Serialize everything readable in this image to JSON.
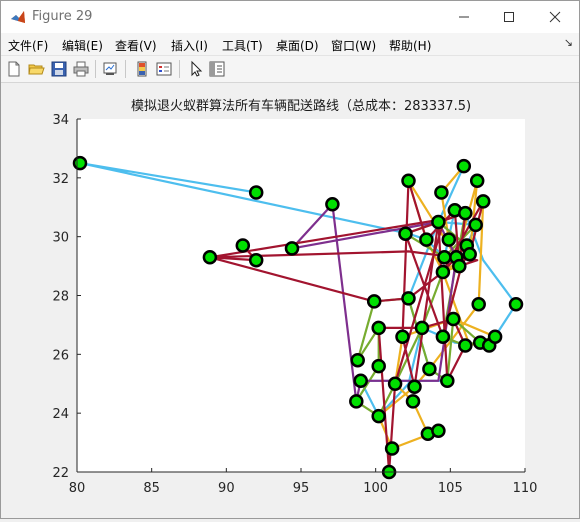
{
  "window": {
    "title": "Figure 29",
    "accent": "#ffffff"
  },
  "menu": {
    "items": [
      "文件(F)",
      "编辑(E)",
      "查看(V)",
      "插入(I)",
      "工具(T)",
      "桌面(D)",
      "窗口(W)",
      "帮助(H)"
    ]
  },
  "toolbar": {
    "icons": [
      "new-figure-icon",
      "open-file-icon",
      "save-icon",
      "print-icon",
      "link-plot-icon",
      "insert-colorbar-icon",
      "insert-legend-icon",
      "edit-plot-icon",
      "property-inspector-icon"
    ]
  },
  "chart_data": {
    "type": "line",
    "title": "模拟退火蚁群算法所有车辆配送路线（总成本：283337.5)",
    "xlim": [
      80,
      110
    ],
    "ylim": [
      22,
      34
    ],
    "x_ticks": [
      "80",
      "85",
      "90",
      "95",
      "100",
      "105",
      "110"
    ],
    "y_ticks": [
      "22",
      "24",
      "26",
      "28",
      "30",
      "32",
      "34"
    ],
    "node_color": "#00e000",
    "node_edge_color": "#000000",
    "nodes": [
      [
        80.2,
        32.5
      ],
      [
        92.0,
        31.5
      ],
      [
        91.1,
        29.7
      ],
      [
        92.0,
        29.2
      ],
      [
        88.9,
        29.3
      ],
      [
        94.4,
        29.6
      ],
      [
        97.1,
        31.1
      ],
      [
        102.2,
        31.9
      ],
      [
        104.4,
        31.5
      ],
      [
        105.9,
        32.4
      ],
      [
        106.8,
        31.9
      ],
      [
        107.2,
        31.2
      ],
      [
        105.3,
        30.9
      ],
      [
        106.0,
        30.8
      ],
      [
        106.7,
        30.4
      ],
      [
        104.2,
        30.5
      ],
      [
        102.0,
        30.1
      ],
      [
        103.4,
        29.9
      ],
      [
        104.9,
        29.9
      ],
      [
        106.1,
        29.7
      ],
      [
        106.3,
        29.4
      ],
      [
        105.4,
        29.3
      ],
      [
        104.6,
        29.3
      ],
      [
        105.6,
        29.0
      ],
      [
        104.5,
        28.8
      ],
      [
        102.2,
        27.9
      ],
      [
        99.9,
        27.8
      ],
      [
        106.9,
        27.7
      ],
      [
        109.4,
        27.7
      ],
      [
        103.1,
        26.9
      ],
      [
        105.2,
        27.2
      ],
      [
        100.2,
        26.9
      ],
      [
        101.8,
        26.6
      ],
      [
        104.5,
        26.6
      ],
      [
        107.0,
        26.4
      ],
      [
        107.6,
        26.3
      ],
      [
        106.0,
        26.3
      ],
      [
        108.0,
        26.6
      ],
      [
        98.8,
        25.8
      ],
      [
        100.2,
        25.6
      ],
      [
        103.6,
        25.5
      ],
      [
        99.0,
        25.1
      ],
      [
        101.3,
        25.0
      ],
      [
        102.6,
        24.9
      ],
      [
        104.8,
        25.1
      ],
      [
        98.7,
        24.4
      ],
      [
        100.2,
        23.9
      ],
      [
        102.5,
        24.4
      ],
      [
        103.5,
        23.3
      ],
      [
        104.2,
        23.4
      ],
      [
        101.1,
        22.8
      ],
      [
        100.9,
        22.0
      ]
    ],
    "series": [
      {
        "color": "#4dbeee",
        "points": [
          [
            80.2,
            32.5
          ],
          [
            92.0,
            31.5
          ],
          [
            80.2,
            32.5
          ],
          [
            102.2,
            30.1
          ],
          [
            103.4,
            29.9
          ],
          [
            104.6,
            29.3
          ],
          [
            105.3,
            30.9
          ],
          [
            106.0,
            30.8
          ],
          [
            107.2,
            29.2
          ],
          [
            109.4,
            27.7
          ],
          [
            107.6,
            26.3
          ],
          [
            105.3,
            26.4
          ],
          [
            104.5,
            26.6
          ],
          [
            103.1,
            26.9
          ],
          [
            102.2,
            25.0
          ],
          [
            100.2,
            23.9
          ],
          [
            99.0,
            25.1
          ],
          [
            104.8,
            25.1
          ],
          [
            103.6,
            25.5
          ],
          [
            102.2,
            27.9
          ],
          [
            104.2,
            30.5
          ],
          [
            106.7,
            30.4
          ],
          [
            106.1,
            29.7
          ],
          [
            104.2,
            30.5
          ],
          [
            105.9,
            32.4
          ]
        ]
      },
      {
        "color": "#edb120",
        "points": [
          [
            105.9,
            32.4
          ],
          [
            104.4,
            31.5
          ],
          [
            104.9,
            29.9
          ],
          [
            105.6,
            29.0
          ],
          [
            104.5,
            28.8
          ],
          [
            106.3,
            29.4
          ],
          [
            106.8,
            31.9
          ],
          [
            105.4,
            29.3
          ],
          [
            102.2,
            31.9
          ],
          [
            103.4,
            29.9
          ],
          [
            104.5,
            28.8
          ],
          [
            106.3,
            26.3
          ],
          [
            108.0,
            26.6
          ],
          [
            105.2,
            27.2
          ],
          [
            101.8,
            26.6
          ],
          [
            101.3,
            25.0
          ],
          [
            102.5,
            24.4
          ],
          [
            103.5,
            23.3
          ],
          [
            104.2,
            23.4
          ],
          [
            101.1,
            22.8
          ],
          [
            100.2,
            23.9
          ],
          [
            102.6,
            24.9
          ],
          [
            103.6,
            25.5
          ],
          [
            106.9,
            27.7
          ],
          [
            107.2,
            31.2
          ]
        ]
      },
      {
        "color": "#77ac30",
        "points": [
          [
            106.7,
            30.4
          ],
          [
            104.6,
            29.3
          ],
          [
            102.0,
            30.1
          ],
          [
            104.2,
            30.5
          ],
          [
            106.1,
            29.7
          ],
          [
            104.5,
            28.8
          ],
          [
            103.1,
            26.9
          ],
          [
            101.3,
            25.0
          ],
          [
            100.2,
            23.9
          ],
          [
            98.7,
            24.4
          ],
          [
            100.2,
            25.6
          ],
          [
            100.2,
            26.9
          ],
          [
            98.8,
            25.8
          ],
          [
            99.9,
            27.8
          ],
          [
            102.2,
            27.9
          ],
          [
            103.6,
            25.5
          ],
          [
            104.8,
            25.1
          ],
          [
            105.2,
            27.2
          ],
          [
            107.0,
            26.4
          ],
          [
            107.6,
            26.3
          ],
          [
            108.0,
            26.6
          ],
          [
            106.0,
            26.3
          ],
          [
            104.5,
            26.6
          ],
          [
            106.0,
            30.8
          ]
        ]
      },
      {
        "color": "#7e2f8e",
        "points": [
          [
            94.4,
            29.6
          ],
          [
            97.1,
            31.1
          ],
          [
            98.7,
            24.4
          ],
          [
            99.0,
            25.1
          ],
          [
            104.2,
            25.1
          ],
          [
            105.4,
            29.3
          ],
          [
            104.2,
            30.5
          ],
          [
            94.4,
            29.6
          ]
        ]
      },
      {
        "color": "#a2142f",
        "points": [
          [
            91.1,
            29.7
          ],
          [
            92.0,
            29.2
          ],
          [
            88.9,
            29.3
          ],
          [
            102.2,
            29.5
          ],
          [
            106.8,
            29.2
          ],
          [
            105.6,
            29.0
          ],
          [
            106.3,
            29.4
          ],
          [
            107.2,
            31.2
          ],
          [
            104.5,
            28.8
          ],
          [
            102.2,
            27.9
          ],
          [
            99.9,
            27.8
          ],
          [
            88.9,
            29.3
          ],
          [
            104.6,
            30.6
          ],
          [
            101.3,
            25.0
          ],
          [
            100.9,
            22.0
          ],
          [
            100.2,
            26.9
          ],
          [
            103.1,
            26.9
          ],
          [
            105.2,
            27.2
          ],
          [
            106.0,
            26.3
          ],
          [
            104.8,
            25.1
          ],
          [
            104.2,
            30.5
          ],
          [
            102.6,
            24.9
          ],
          [
            101.8,
            26.6
          ],
          [
            102.2,
            31.9
          ],
          [
            103.4,
            29.9
          ],
          [
            105.3,
            30.9
          ],
          [
            105.6,
            29.0
          ],
          [
            106.0,
            30.8
          ],
          [
            102.0,
            30.1
          ],
          [
            104.5,
            26.6
          ],
          [
            106.1,
            29.7
          ],
          [
            104.5,
            28.8
          ]
        ]
      }
    ]
  }
}
